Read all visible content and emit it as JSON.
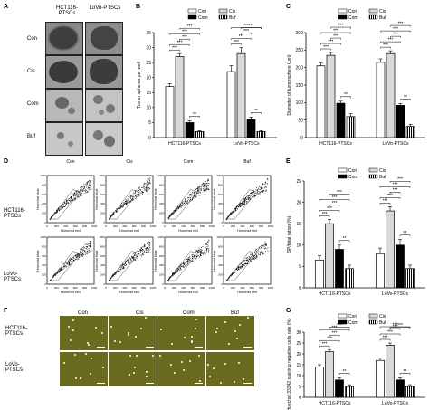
{
  "panels": {
    "A": "A",
    "B": "B",
    "C": "C",
    "D": "D",
    "E": "E",
    "F": "F",
    "G": "G"
  },
  "conditions": [
    "Con",
    "Cis",
    "Com",
    "Buf"
  ],
  "cell_lines": {
    "hct": "HCT116-PTSCs",
    "lovo": "LoVo-PTSCs",
    "hct_row": "HCT116-\nPTSCs",
    "lovo_row": "LoVo-\nPTSCs"
  },
  "legend": {
    "con": "Con",
    "cis": "Cis",
    "com": "Com",
    "buf": "Buf"
  },
  "colors": {
    "con": "#ffffff",
    "cis": "#d9d9d9",
    "com": "#000000",
    "buf": "striped",
    "olive": "#6b6b1f"
  },
  "flow": {
    "xlabel": "Hoechst red",
    "ylabel": "Hoechst blue",
    "ticks": [
      "0",
      "200",
      "400",
      "600",
      "800",
      "1000"
    ]
  },
  "chart_data": [
    {
      "type": "bar",
      "panel": "B",
      "ylabel": "Tumor spheres per well",
      "ylim": [
        0,
        35
      ],
      "yticks": [
        0,
        5,
        10,
        15,
        20,
        25,
        30,
        35
      ],
      "categories": [
        "HCT116-PTSCs",
        "LoVo-PTSCs"
      ],
      "series": [
        {
          "name": "Con",
          "values": [
            17,
            22
          ]
        },
        {
          "name": "Cis",
          "values": [
            27,
            28
          ]
        },
        {
          "name": "Com",
          "values": [
            5,
            6
          ]
        },
        {
          "name": "Buf",
          "values": [
            2,
            2
          ]
        }
      ],
      "errors": [
        [
          1,
          2
        ],
        [
          1,
          2
        ],
        [
          0.6,
          0.8
        ],
        [
          0.3,
          0.3
        ]
      ]
    },
    {
      "type": "bar",
      "panel": "C",
      "ylabel": "Diameter of tumorsphere (μm)",
      "ylim": [
        0,
        300
      ],
      "yticks": [
        0,
        50,
        100,
        150,
        200,
        250,
        300
      ],
      "categories": [
        "HCT116-PTSCs",
        "LoVo-PTSCs"
      ],
      "series": [
        {
          "name": "Con",
          "values": [
            205,
            215
          ]
        },
        {
          "name": "Cis",
          "values": [
            235,
            240
          ]
        },
        {
          "name": "Com",
          "values": [
            98,
            92
          ]
        },
        {
          "name": "Buf",
          "values": [
            60,
            32
          ]
        }
      ],
      "errors": [
        [
          8,
          10
        ],
        [
          8,
          8
        ],
        [
          6,
          5
        ],
        [
          8,
          6
        ]
      ]
    },
    {
      "type": "bar",
      "panel": "E",
      "ylabel": "SP/total ration (%)",
      "ylim": [
        0,
        25
      ],
      "yticks": [
        0,
        5,
        10,
        15,
        20,
        25
      ],
      "categories": [
        "HCT116-PTSCs",
        "LoVo-PTSCs"
      ],
      "series": [
        {
          "name": "Con",
          "values": [
            6.5,
            8
          ]
        },
        {
          "name": "Cis",
          "values": [
            15,
            18
          ]
        },
        {
          "name": "Com",
          "values": [
            9,
            10
          ]
        },
        {
          "name": "Buf",
          "values": [
            4.5,
            4.5
          ]
        }
      ],
      "errors": [
        [
          1,
          1.3
        ],
        [
          1,
          1
        ],
        [
          1,
          1.3
        ],
        [
          0.8,
          0.8
        ]
      ]
    },
    {
      "type": "bar",
      "panel": "G",
      "ylabel": "Hoechst 33342 staining negative cells rate (%)",
      "ylim": [
        0,
        30
      ],
      "yticks": [
        0,
        5,
        10,
        15,
        20,
        25,
        30
      ],
      "categories": [
        "HCT116-PTSCs",
        "LoVo-PTSCs"
      ],
      "series": [
        {
          "name": "Con",
          "values": [
            14,
            17
          ]
        },
        {
          "name": "Cis",
          "values": [
            21,
            24
          ]
        },
        {
          "name": "Com",
          "values": [
            8,
            8
          ]
        },
        {
          "name": "Buf",
          "values": [
            5,
            5
          ]
        }
      ],
      "errors": [
        [
          1,
          1
        ],
        [
          1,
          1
        ],
        [
          1,
          1
        ],
        [
          0.8,
          0.8
        ]
      ]
    }
  ]
}
